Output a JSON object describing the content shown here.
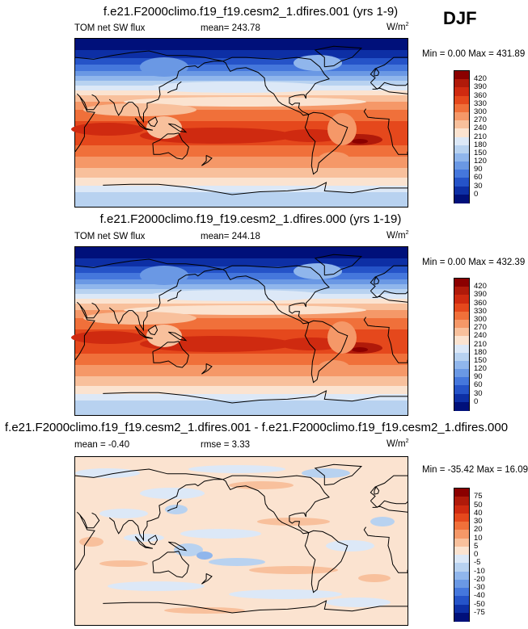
{
  "season": "DJF",
  "panels": [
    {
      "title": "f.e21.F2000climo.f19_f19.cesm2_1.dfires.001 (yrs 1-9)",
      "var_label": "TOM net SW flux",
      "stat_text": "mean= 243.78",
      "stat2_text": "",
      "units_base": "W/m",
      "units_exp": "2",
      "minmax": "Min =   0.00 Max = 431.89",
      "levels": [
        "420",
        "390",
        "360",
        "330",
        "300",
        "270",
        "240",
        "210",
        "180",
        "150",
        "120",
        "90",
        "60",
        "30",
        "0"
      ],
      "colors": [
        "#8b0000",
        "#b01a0a",
        "#cf2a10",
        "#e5481c",
        "#f0703a",
        "#f59868",
        "#f8c09c",
        "#fbe3d0",
        "#dce8f7",
        "#b8d2f0",
        "#90b6ec",
        "#6a98e4",
        "#4577dc",
        "#2553c8",
        "#0d2fa5",
        "#00107a"
      ]
    },
    {
      "title": "f.e21.F2000climo.f19_f19.cesm2_1.dfires.000 (yrs 1-19)",
      "var_label": "TOM net SW flux",
      "stat_text": "mean= 244.18",
      "stat2_text": "",
      "units_base": "W/m",
      "units_exp": "2",
      "minmax": "Min =   0.00 Max = 432.39",
      "levels": [
        "420",
        "390",
        "360",
        "330",
        "300",
        "270",
        "240",
        "210",
        "180",
        "150",
        "120",
        "90",
        "60",
        "30",
        "0"
      ],
      "colors": [
        "#8b0000",
        "#b01a0a",
        "#cf2a10",
        "#e5481c",
        "#f0703a",
        "#f59868",
        "#f8c09c",
        "#fbe3d0",
        "#dce8f7",
        "#b8d2f0",
        "#90b6ec",
        "#6a98e4",
        "#4577dc",
        "#2553c8",
        "#0d2fa5",
        "#00107a"
      ]
    },
    {
      "title": "f.e21.F2000climo.f19_f19.cesm2_1.dfires.001 - f.e21.F2000climo.f19_f19.cesm2_1.dfires.000",
      "var_label": "",
      "stat_text": "mean =  -0.40",
      "stat2_text": "rmse =   3.33",
      "units_base": "W/m",
      "units_exp": "2",
      "minmax": "Min = -35.42 Max =  16.09",
      "levels": [
        "75",
        "50",
        "40",
        "30",
        "20",
        "10",
        "5",
        "0",
        "-5",
        "-10",
        "-20",
        "-30",
        "-40",
        "-50",
        "-75"
      ],
      "colors": [
        "#8b0000",
        "#b01a0a",
        "#cf2a10",
        "#e5481c",
        "#f0703a",
        "#f59868",
        "#f8c09c",
        "#fbe3d0",
        "#dce8f7",
        "#b8d2f0",
        "#90b6ec",
        "#6a98e4",
        "#4577dc",
        "#2553c8",
        "#0d2fa5",
        "#00107a"
      ]
    }
  ],
  "chart_data": [
    {
      "type": "heatmap",
      "title": "f.e21.F2000climo.f19_f19.cesm2_1.dfires.001 (yrs 1-9)",
      "variable": "TOM net SW flux",
      "units": "W/m2",
      "mean": 243.78,
      "min": 0.0,
      "max": 431.89,
      "contour_levels": [
        0,
        30,
        60,
        90,
        120,
        150,
        180,
        210,
        240,
        270,
        300,
        330,
        360,
        390,
        420
      ]
    },
    {
      "type": "heatmap",
      "title": "f.e21.F2000climo.f19_f19.cesm2_1.dfires.000 (yrs 1-19)",
      "variable": "TOM net SW flux",
      "units": "W/m2",
      "mean": 244.18,
      "min": 0.0,
      "max": 432.39,
      "contour_levels": [
        0,
        30,
        60,
        90,
        120,
        150,
        180,
        210,
        240,
        270,
        300,
        330,
        360,
        390,
        420
      ]
    },
    {
      "type": "heatmap",
      "title": "f.e21.F2000climo.f19_f19.cesm2_1.dfires.001 - f.e21.F2000climo.f19_f19.cesm2_1.dfires.000",
      "units": "W/m2",
      "mean": -0.4,
      "rmse": 3.33,
      "min": -35.42,
      "max": 16.09,
      "contour_levels": [
        -75,
        -50,
        -40,
        -30,
        -20,
        -10,
        -5,
        0,
        5,
        10,
        20,
        30,
        40,
        50,
        75
      ]
    }
  ]
}
